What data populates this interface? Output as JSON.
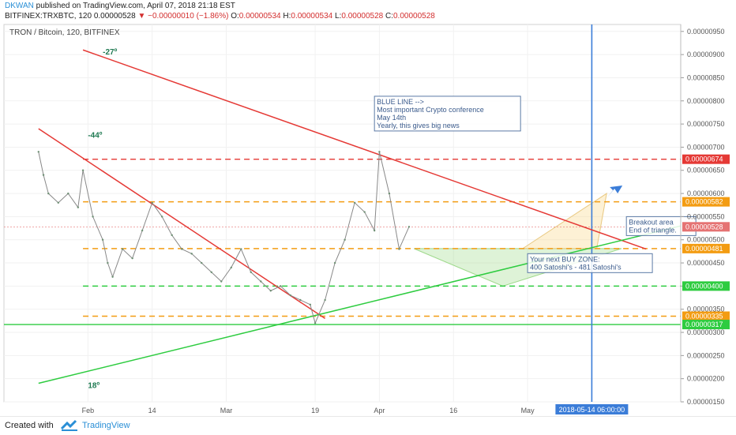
{
  "header": {
    "author": "DKWAN",
    "published": "published on TradingView.com, April 07, 2018 21:18 EST",
    "symbol_line": "BITFINEX:TRXBTC, 120",
    "price": "0.00000528",
    "change": "−0.00000010 (−1.86%)",
    "ohlc": {
      "o_label": "O:",
      "o": "0.00000534",
      "h_label": "H:",
      "h": "0.00000534",
      "l_label": "L:",
      "l": "0.00000528",
      "c_label": "C:",
      "c": "0.00000528"
    }
  },
  "chart_data": {
    "type": "line",
    "title": "TRON / Bitcoin, 120, BITFINEX",
    "y_unit": "BTC",
    "ylim": [
      1.5e-06,
      9.65e-06
    ],
    "y_ticks": [
      "0.00000150",
      "0.00000200",
      "0.00000250",
      "0.00000300",
      "0.00000350",
      "0.00000400",
      "0.00000450",
      "0.00000500",
      "0.00000550",
      "0.00000600",
      "0.00000650",
      "0.00000700",
      "0.00000750",
      "0.00000800",
      "0.00000850",
      "0.00000900",
      "0.00000950"
    ],
    "x_ticks": [
      "Feb",
      "14",
      "Mar",
      "19",
      "Apr",
      "16",
      "May"
    ],
    "x_tick_dates": [
      "2018-02-01",
      "2018-02-14",
      "2018-03-01",
      "2018-03-19",
      "2018-04-01",
      "2018-04-16",
      "2018-05-01"
    ],
    "xlim_dates": [
      "2018-01-15",
      "2018-06-01"
    ],
    "series": [
      {
        "color": "#888888",
        "x": [
          "2018-01-22",
          "2018-01-23",
          "2018-01-24",
          "2018-01-26",
          "2018-01-28",
          "2018-01-30",
          "2018-01-31",
          "2018-02-02",
          "2018-02-04",
          "2018-02-05",
          "2018-02-06",
          "2018-02-08",
          "2018-02-10",
          "2018-02-12",
          "2018-02-14",
          "2018-02-16",
          "2018-02-18",
          "2018-02-20",
          "2018-02-22",
          "2018-02-24",
          "2018-02-26",
          "2018-02-28",
          "2018-03-02",
          "2018-03-04",
          "2018-03-06",
          "2018-03-08",
          "2018-03-10",
          "2018-03-12",
          "2018-03-14",
          "2018-03-16",
          "2018-03-18",
          "2018-03-19",
          "2018-03-21",
          "2018-03-23",
          "2018-03-25",
          "2018-03-27",
          "2018-03-29",
          "2018-03-31",
          "2018-04-01",
          "2018-04-03",
          "2018-04-05",
          "2018-04-07"
        ],
        "values": [
          6.9e-06,
          6.4e-06,
          6e-06,
          5.8e-06,
          6e-06,
          5.7e-06,
          6.5e-06,
          5.5e-06,
          5e-06,
          4.5e-06,
          4.2e-06,
          4.8e-06,
          4.6e-06,
          5.2e-06,
          5.8e-06,
          5.5e-06,
          5.1e-06,
          4.8e-06,
          4.7e-06,
          4.5e-06,
          4.3e-06,
          4.1e-06,
          4.4e-06,
          4.8e-06,
          4.3e-06,
          4.1e-06,
          3.9e-06,
          4e-06,
          3.8e-06,
          3.7e-06,
          3.6e-06,
          3.2e-06,
          3.7e-06,
          4.5e-06,
          5e-06,
          5.8e-06,
          5.6e-06,
          5.2e-06,
          6.9e-06,
          6e-06,
          4.8e-06,
          5.28e-06
        ]
      }
    ],
    "horizontal_levels": [
      {
        "value": 6.74e-06,
        "label": "0.00000674",
        "color": "#e53935",
        "style": "dashed"
      },
      {
        "value": 5.82e-06,
        "label": "0.00000582",
        "color": "#f39c12",
        "style": "dashed"
      },
      {
        "value": 5.28e-06,
        "label": "0.00000528",
        "color": "#e57373",
        "style": "current"
      },
      {
        "value": 4.81e-06,
        "label": "0.00000481",
        "color": "#f39c12",
        "style": "dashed"
      },
      {
        "value": 4e-06,
        "label": "0.00000400",
        "color": "#2ecc40",
        "style": "dashed"
      },
      {
        "value": 3.35e-06,
        "label": "0.00000335",
        "color": "#f39c12",
        "style": "dashed"
      },
      {
        "value": 3.17e-06,
        "label": "0.00000317",
        "color": "#2ecc40",
        "style": "solid"
      }
    ],
    "trendlines": [
      {
        "from": [
          "2018-01-31",
          9.1e-06
        ],
        "to": [
          "2018-05-25",
          4.8e-06
        ],
        "color": "#e53935"
      },
      {
        "from": [
          "2018-01-22",
          7.4e-06
        ],
        "to": [
          "2018-03-21",
          3.3e-06
        ],
        "color": "#e53935"
      },
      {
        "from": [
          "2018-01-22",
          1.9e-06
        ],
        "to": [
          "2018-06-01",
          5.3e-06
        ],
        "color": "#2ecc40"
      }
    ],
    "angle_labels": [
      "-27º",
      "-44º",
      "18º"
    ],
    "vertical_marker": {
      "date": "2018-05-14",
      "label": "2018-05-14 06:00:00",
      "color": "#3b7dd8"
    },
    "annotations": [
      {
        "id": "blue-line-note",
        "lines": [
          "BLUE LINE -->",
          "Most important Crypto conference",
          "May 14th",
          "Yearly, this gives big news"
        ]
      },
      {
        "id": "breakout-note",
        "lines": [
          "Breakout area",
          "End of triangle."
        ]
      },
      {
        "id": "buy-zone-note",
        "lines": [
          "Your next BUY ZONE:",
          "400 Satoshi's - 481 Satoshi's"
        ]
      }
    ]
  },
  "footer": {
    "created_with": "Created with",
    "brand": "TradingView"
  }
}
